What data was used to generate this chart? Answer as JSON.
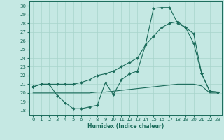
{
  "xlabel": "Humidex (Indice chaleur)",
  "xlim": [
    -0.5,
    23.5
  ],
  "ylim": [
    17.5,
    30.5
  ],
  "xticks": [
    0,
    1,
    2,
    3,
    4,
    5,
    6,
    7,
    8,
    9,
    10,
    11,
    12,
    13,
    14,
    15,
    16,
    17,
    18,
    19,
    20,
    21,
    22,
    23
  ],
  "yticks": [
    18,
    19,
    20,
    21,
    22,
    23,
    24,
    25,
    26,
    27,
    28,
    29,
    30
  ],
  "bg_color": "#c5e8e3",
  "grid_color": "#a8d4cc",
  "line_color": "#1a6b5a",
  "line1_x": [
    0,
    1,
    2,
    3,
    4,
    5,
    6,
    7,
    8,
    9,
    10,
    11,
    12,
    13,
    14,
    15,
    16,
    17,
    18,
    19,
    20,
    21,
    22,
    23
  ],
  "line1_y": [
    20.7,
    21.0,
    21.0,
    19.7,
    18.9,
    18.2,
    18.2,
    18.4,
    18.6,
    21.2,
    19.8,
    21.5,
    22.2,
    22.5,
    25.5,
    29.7,
    29.8,
    29.8,
    28.0,
    27.5,
    25.7,
    22.2,
    20.2,
    20.1
  ],
  "line2_x": [
    0,
    1,
    2,
    3,
    4,
    5,
    6,
    7,
    8,
    9,
    10,
    11,
    12,
    13,
    14,
    15,
    16,
    17,
    18,
    19,
    20,
    21,
    22,
    23
  ],
  "line2_y": [
    20.7,
    21.0,
    21.0,
    21.0,
    21.0,
    21.0,
    21.2,
    21.5,
    22.0,
    22.2,
    22.5,
    23.0,
    23.5,
    24.0,
    25.5,
    26.5,
    27.5,
    28.0,
    28.2,
    27.5,
    26.8,
    22.2,
    20.2,
    20.1
  ],
  "line3_x": [
    0,
    1,
    2,
    3,
    4,
    5,
    6,
    7,
    8,
    9,
    10,
    11,
    12,
    13,
    14,
    15,
    16,
    17,
    18,
    19,
    20,
    21,
    22,
    23
  ],
  "line3_y": [
    20.0,
    20.0,
    20.0,
    20.0,
    20.0,
    20.0,
    20.0,
    20.0,
    20.1,
    20.1,
    20.2,
    20.3,
    20.4,
    20.5,
    20.6,
    20.7,
    20.8,
    20.9,
    21.0,
    21.0,
    21.0,
    20.8,
    20.0,
    20.0
  ]
}
